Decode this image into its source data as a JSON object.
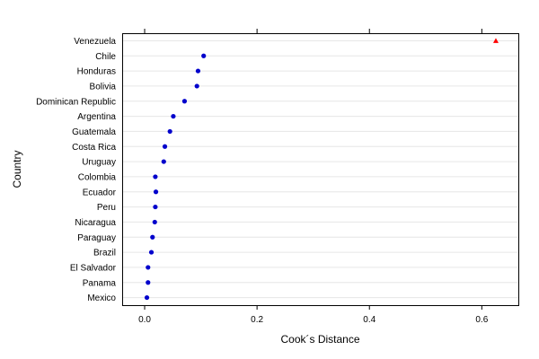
{
  "chart_data": {
    "type": "scatter",
    "xlabel": "Cook´s Distance",
    "ylabel": "Country",
    "xlim": [
      -0.04,
      0.665
    ],
    "xticks": [
      0.0,
      0.2,
      0.4,
      0.6
    ],
    "xtick_labels": [
      "0.0",
      "0.2",
      "0.4",
      "0.6"
    ],
    "grid": "horizontal",
    "categories": [
      "Venezuela",
      "Chile",
      "Honduras",
      "Bolivia",
      "Dominican Republic",
      "Argentina",
      "Guatemala",
      "Costa Rica",
      "Uruguay",
      "Colombia",
      "Ecuador",
      "Peru",
      "Nicaragua",
      "Paraguay",
      "Brazil",
      "El Salvador",
      "Panama",
      "Mexico"
    ],
    "values": [
      0.625,
      0.105,
      0.095,
      0.093,
      0.071,
      0.051,
      0.045,
      0.036,
      0.034,
      0.019,
      0.02,
      0.019,
      0.018,
      0.014,
      0.012,
      0.006,
      0.006,
      0.004
    ],
    "markers": [
      "triangle",
      "circle",
      "circle",
      "circle",
      "circle",
      "circle",
      "circle",
      "circle",
      "circle",
      "circle",
      "circle",
      "circle",
      "circle",
      "circle",
      "circle",
      "circle",
      "circle",
      "circle"
    ],
    "colors": {
      "outlier": "#ff0000",
      "point": "#0000cc",
      "grid": "#e6e6e6",
      "frame": "#000000"
    }
  }
}
